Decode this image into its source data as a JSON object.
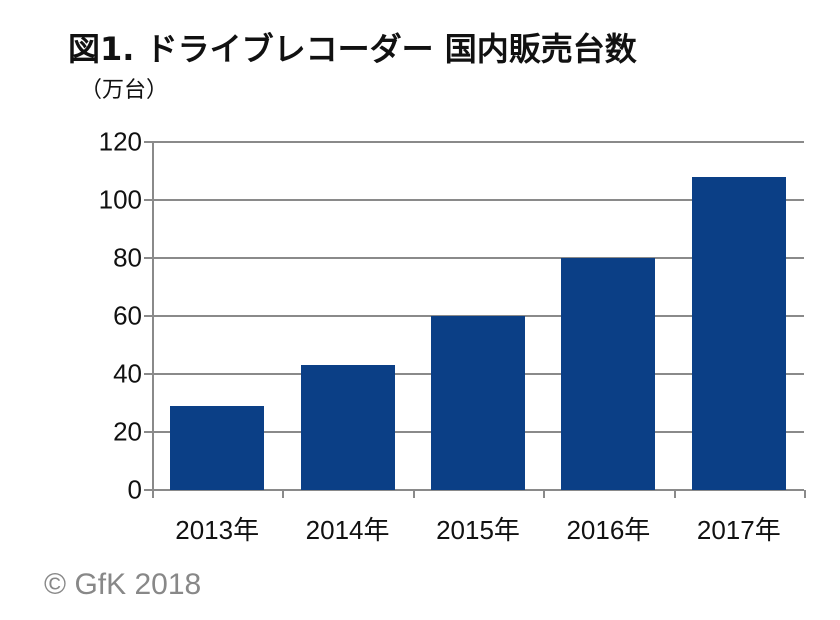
{
  "chart_data": {
    "type": "bar",
    "title": "図1. ドライブレコーダー 国内販売台数",
    "unit_label": "（万台）",
    "xlabel": "",
    "ylabel": "万台",
    "categories": [
      "2013年",
      "2014年",
      "2015年",
      "2016年",
      "2017年"
    ],
    "values": [
      29,
      43,
      60,
      80,
      108
    ],
    "ylim": [
      0,
      120
    ],
    "yticks": [
      "120",
      "100",
      "80",
      "60",
      "40",
      "20",
      "0"
    ],
    "grid": true,
    "legend": "none",
    "bar_color": "#0b3f86",
    "source": "© GfK 2018"
  }
}
